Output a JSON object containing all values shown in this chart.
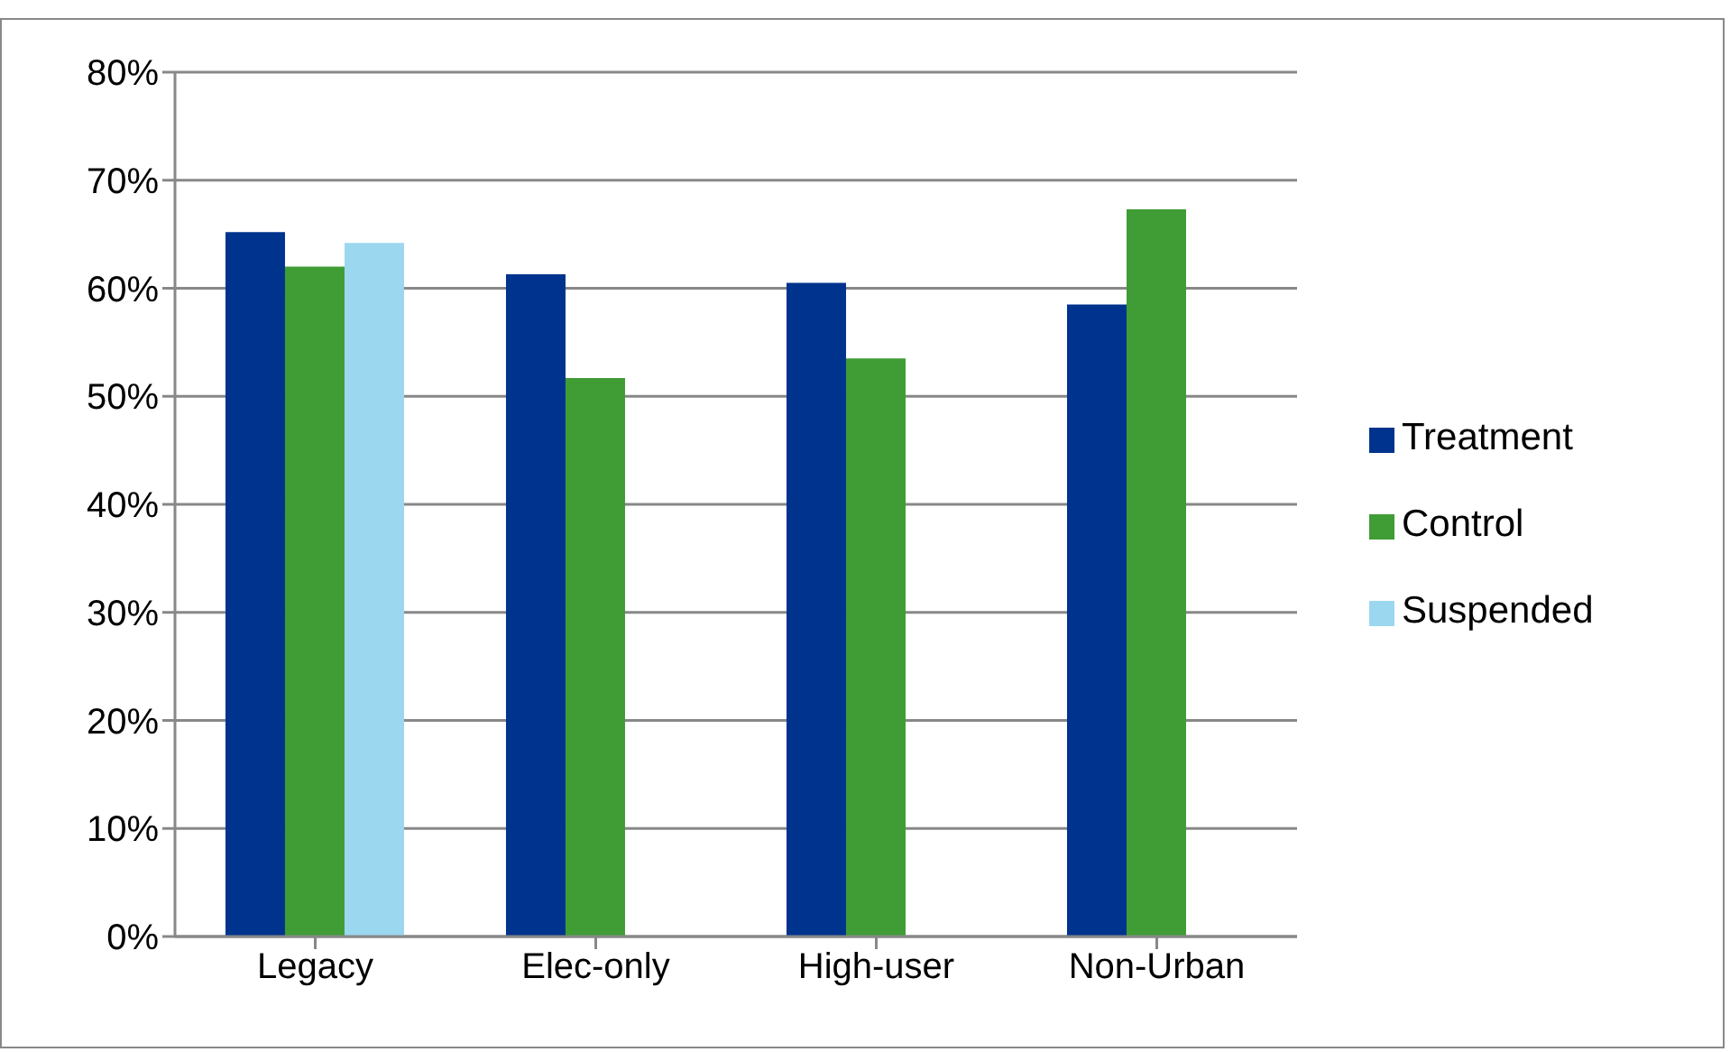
{
  "chart_data": {
    "type": "bar",
    "categories": [
      "Legacy",
      "Elec-only",
      "High-user",
      "Non-Urban"
    ],
    "series": [
      {
        "name": "Treatment",
        "color": "#00338d",
        "values": [
          65.2,
          61.3,
          60.5,
          58.5
        ]
      },
      {
        "name": "Control",
        "color": "#409c35",
        "values": [
          62,
          51.7,
          53.5,
          67.3
        ]
      },
      {
        "name": "Suspended",
        "color": "#9cd7f0",
        "values": [
          64.2,
          null,
          null,
          null
        ]
      }
    ],
    "ylim": [
      0,
      80
    ],
    "yticks": [
      {
        "value": 0,
        "label": "0%"
      },
      {
        "value": 10,
        "label": "10%"
      },
      {
        "value": 20,
        "label": "20%"
      },
      {
        "value": 30,
        "label": "30%"
      },
      {
        "value": 40,
        "label": "40%"
      },
      {
        "value": 50,
        "label": "50%"
      },
      {
        "value": 60,
        "label": "60%"
      },
      {
        "value": 70,
        "label": "70%"
      },
      {
        "value": 80,
        "label": "80%"
      }
    ],
    "grid": "y",
    "legend": "right"
  }
}
